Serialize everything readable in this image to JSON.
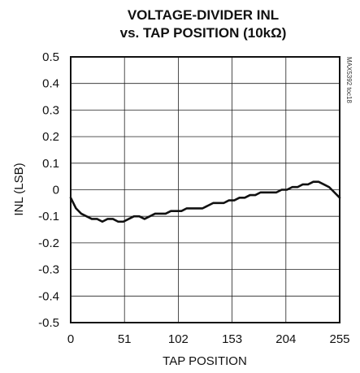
{
  "chart_data": {
    "type": "line",
    "title_line1": "VOLTAGE-DIVIDER INL",
    "title_line2": "vs. TAP POSITION (10kΩ)",
    "xlabel": "TAP POSITION",
    "ylabel": "INL (LSB)",
    "side_note": "MAX5392 toc18",
    "xlim": [
      0,
      255
    ],
    "ylim": [
      -0.5,
      0.5
    ],
    "x_ticks": [
      0,
      51,
      102,
      153,
      204,
      255
    ],
    "x_tick_labels": [
      "0",
      "51",
      "102",
      "153",
      "204",
      "255"
    ],
    "y_ticks": [
      0.5,
      0.4,
      0.3,
      0.2,
      0.1,
      0,
      -0.1,
      -0.2,
      -0.3,
      -0.4,
      -0.5
    ],
    "y_tick_labels": [
      "0.5",
      "0.4",
      "0.3",
      "0.2",
      "0.1",
      "0",
      "-0.1",
      "-0.2",
      "-0.3",
      "-0.4",
      "-0.5"
    ],
    "grid": true,
    "series": [
      {
        "color": "#111111",
        "x": [
          0,
          5,
          10,
          15,
          20,
          25,
          30,
          35,
          40,
          45,
          50,
          55,
          60,
          65,
          70,
          75,
          80,
          85,
          90,
          95,
          100,
          105,
          110,
          115,
          120,
          125,
          130,
          135,
          140,
          145,
          150,
          155,
          160,
          165,
          170,
          175,
          180,
          185,
          190,
          195,
          200,
          205,
          210,
          215,
          220,
          225,
          230,
          235,
          240,
          245,
          250,
          255
        ],
        "y": [
          -0.03,
          -0.07,
          -0.09,
          -0.1,
          -0.11,
          -0.11,
          -0.12,
          -0.11,
          -0.11,
          -0.12,
          -0.12,
          -0.11,
          -0.1,
          -0.1,
          -0.11,
          -0.1,
          -0.09,
          -0.09,
          -0.09,
          -0.08,
          -0.08,
          -0.08,
          -0.07,
          -0.07,
          -0.07,
          -0.07,
          -0.06,
          -0.05,
          -0.05,
          -0.05,
          -0.04,
          -0.04,
          -0.03,
          -0.03,
          -0.02,
          -0.02,
          -0.01,
          -0.01,
          -0.01,
          -0.01,
          0.0,
          0.0,
          0.01,
          0.01,
          0.02,
          0.02,
          0.03,
          0.03,
          0.02,
          0.01,
          -0.01,
          -0.03
        ]
      }
    ]
  }
}
